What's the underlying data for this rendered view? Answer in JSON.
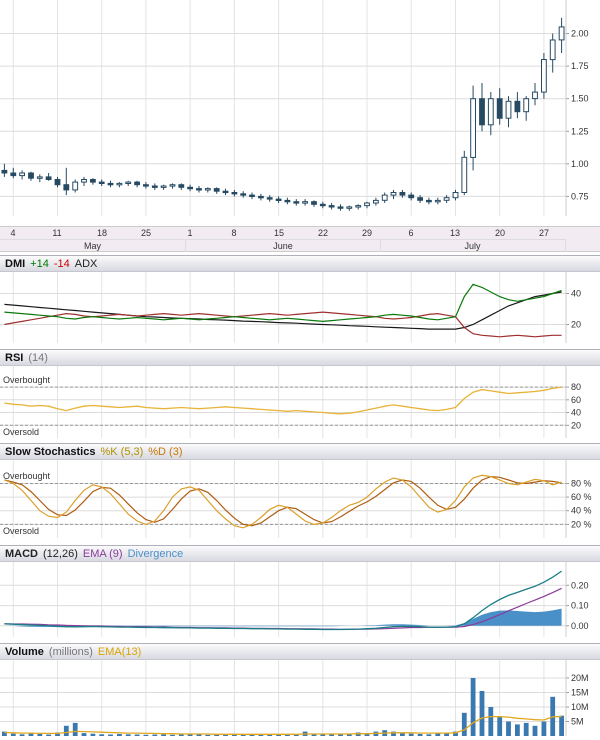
{
  "labels": {
    "overbought": "Overbought",
    "oversold": "Oversold"
  },
  "headers": {
    "dmi": {
      "title": "DMI",
      "plus": "+14",
      "minus": "-14",
      "adx": "ADX"
    },
    "rsi": {
      "title": "RSI",
      "param": "(14)"
    },
    "stoch": {
      "title": "Slow Stochastics",
      "k": "%K (5,3)",
      "d": "%D (3)"
    },
    "macd": {
      "title": "MACD",
      "param": "(12,26)",
      "ema": "EMA (9)",
      "div": "Divergence"
    },
    "volume": {
      "title": "Volume",
      "units": "(millions)",
      "ema": "EMA(13)"
    }
  },
  "colors": {
    "candle": "#274a63",
    "grid": "#dcdcdc",
    "vgrid": "#e4e4e4",
    "plus_di": "#0a7a0a",
    "minus_di": "#a03030",
    "adx": "#1a1a1a",
    "rsi": "#e8b338",
    "stoch_k": "#dba02a",
    "stoch_d": "#b05c10",
    "macd_line": "#1b7e86",
    "macd_signal": "#8b3a9b",
    "macd_div": "#4a90c8",
    "volume_bar": "#3a78b0",
    "volume_ema": "#e0a820"
  },
  "chart_data": {
    "type": "candlestick-multi-panel",
    "x_unit": "trading-day",
    "week_ticks": [
      {
        "i": 1,
        "t": "4"
      },
      {
        "i": 6,
        "t": "11"
      },
      {
        "i": 11,
        "t": "18"
      },
      {
        "i": 16,
        "t": "25"
      },
      {
        "i": 21,
        "t": "1"
      },
      {
        "i": 26,
        "t": "8"
      },
      {
        "i": 31,
        "t": "15"
      },
      {
        "i": 36,
        "t": "22"
      },
      {
        "i": 41,
        "t": "29"
      },
      {
        "i": 46,
        "t": "6"
      },
      {
        "i": 51,
        "t": "13"
      },
      {
        "i": 56,
        "t": "20"
      },
      {
        "i": 61,
        "t": "27"
      }
    ],
    "months": [
      {
        "t": "May",
        "i0": 0,
        "i1": 20
      },
      {
        "t": "June",
        "i0": 21,
        "i1": 42
      },
      {
        "t": "July",
        "i0": 43,
        "i1": 63
      }
    ],
    "price": {
      "range": [
        0.6,
        2.18
      ],
      "yticks": [
        {
          "v": 2.0,
          "t": "2.00"
        },
        {
          "v": 1.75,
          "t": "1.75"
        },
        {
          "v": 1.5,
          "t": "1.50"
        },
        {
          "v": 1.25,
          "t": "1.25"
        },
        {
          "v": 1.0,
          "t": "1.00"
        },
        {
          "v": 0.75,
          "t": "0.75"
        }
      ],
      "ohlc": [
        [
          0.95,
          1.0,
          0.9,
          0.93
        ],
        [
          0.93,
          0.97,
          0.89,
          0.91
        ],
        [
          0.91,
          0.95,
          0.88,
          0.93
        ],
        [
          0.93,
          0.94,
          0.87,
          0.89
        ],
        [
          0.89,
          0.92,
          0.86,
          0.9
        ],
        [
          0.9,
          0.93,
          0.87,
          0.88
        ],
        [
          0.88,
          0.9,
          0.82,
          0.84
        ],
        [
          0.84,
          0.97,
          0.76,
          0.8
        ],
        [
          0.8,
          0.88,
          0.78,
          0.86
        ],
        [
          0.86,
          0.9,
          0.83,
          0.88
        ],
        [
          0.88,
          0.89,
          0.84,
          0.86
        ],
        [
          0.86,
          0.88,
          0.83,
          0.85
        ],
        [
          0.85,
          0.87,
          0.82,
          0.84
        ],
        [
          0.84,
          0.86,
          0.82,
          0.85
        ],
        [
          0.85,
          0.87,
          0.83,
          0.86
        ],
        [
          0.86,
          0.87,
          0.82,
          0.84
        ],
        [
          0.84,
          0.86,
          0.81,
          0.83
        ],
        [
          0.83,
          0.85,
          0.8,
          0.82
        ],
        [
          0.82,
          0.84,
          0.8,
          0.83
        ],
        [
          0.83,
          0.85,
          0.81,
          0.84
        ],
        [
          0.84,
          0.85,
          0.8,
          0.82
        ],
        [
          0.82,
          0.84,
          0.79,
          0.81
        ],
        [
          0.81,
          0.83,
          0.78,
          0.8
        ],
        [
          0.8,
          0.82,
          0.78,
          0.81
        ],
        [
          0.81,
          0.82,
          0.77,
          0.79
        ],
        [
          0.79,
          0.81,
          0.76,
          0.78
        ],
        [
          0.78,
          0.8,
          0.75,
          0.77
        ],
        [
          0.77,
          0.79,
          0.74,
          0.76
        ],
        [
          0.76,
          0.78,
          0.73,
          0.75
        ],
        [
          0.75,
          0.77,
          0.72,
          0.74
        ],
        [
          0.74,
          0.76,
          0.71,
          0.73
        ],
        [
          0.73,
          0.75,
          0.7,
          0.72
        ],
        [
          0.72,
          0.74,
          0.69,
          0.71
        ],
        [
          0.71,
          0.73,
          0.68,
          0.7
        ],
        [
          0.7,
          0.73,
          0.68,
          0.71
        ],
        [
          0.71,
          0.72,
          0.67,
          0.69
        ],
        [
          0.69,
          0.71,
          0.66,
          0.68
        ],
        [
          0.68,
          0.7,
          0.65,
          0.67
        ],
        [
          0.67,
          0.69,
          0.64,
          0.66
        ],
        [
          0.66,
          0.68,
          0.64,
          0.67
        ],
        [
          0.67,
          0.69,
          0.65,
          0.68
        ],
        [
          0.68,
          0.71,
          0.66,
          0.7
        ],
        [
          0.7,
          0.74,
          0.68,
          0.72
        ],
        [
          0.72,
          0.78,
          0.7,
          0.76
        ],
        [
          0.76,
          0.8,
          0.73,
          0.78
        ],
        [
          0.78,
          0.8,
          0.74,
          0.76
        ],
        [
          0.76,
          0.78,
          0.72,
          0.74
        ],
        [
          0.74,
          0.76,
          0.7,
          0.72
        ],
        [
          0.72,
          0.74,
          0.69,
          0.71
        ],
        [
          0.71,
          0.74,
          0.69,
          0.72
        ],
        [
          0.72,
          0.76,
          0.7,
          0.74
        ],
        [
          0.74,
          0.8,
          0.72,
          0.78
        ],
        [
          0.78,
          1.1,
          0.76,
          1.05
        ],
        [
          1.05,
          1.6,
          0.95,
          1.5
        ],
        [
          1.5,
          1.62,
          1.25,
          1.3
        ],
        [
          1.3,
          1.55,
          1.22,
          1.5
        ],
        [
          1.5,
          1.58,
          1.3,
          1.35
        ],
        [
          1.35,
          1.52,
          1.28,
          1.48
        ],
        [
          1.48,
          1.55,
          1.35,
          1.4
        ],
        [
          1.4,
          1.52,
          1.33,
          1.5
        ],
        [
          1.5,
          1.62,
          1.45,
          1.55
        ],
        [
          1.55,
          1.85,
          1.5,
          1.8
        ],
        [
          1.8,
          2.0,
          1.7,
          1.95
        ],
        [
          1.95,
          2.12,
          1.85,
          2.05
        ]
      ]
    },
    "dmi": {
      "range": [
        8,
        52
      ],
      "yticks": [
        {
          "v": 40,
          "t": "40"
        },
        {
          "v": 20,
          "t": "20"
        }
      ],
      "plus_di": [
        28,
        27.5,
        27,
        26.5,
        26,
        25.5,
        25,
        24,
        23.5,
        24.5,
        25,
        24.5,
        24,
        23.5,
        24,
        24.5,
        24,
        23.5,
        23,
        23.5,
        24,
        23.5,
        23,
        23.5,
        24,
        24.5,
        25,
        24.5,
        24,
        23.5,
        23,
        23.5,
        24,
        23.5,
        23,
        22.5,
        22,
        22.5,
        23,
        23.5,
        24,
        24.5,
        25,
        26,
        26.5,
        26,
        25.5,
        24.5,
        23.5,
        23,
        24,
        25,
        38,
        46,
        44,
        41,
        38,
        36,
        35,
        36,
        37,
        38,
        40,
        42
      ],
      "minus_di": [
        20,
        21,
        22,
        23,
        24,
        25,
        26,
        27,
        26.5,
        25.5,
        25,
        25.5,
        26,
        26.5,
        26,
        25.5,
        26,
        26.5,
        27,
        26.5,
        26,
        26.5,
        27,
        26.5,
        26,
        25.5,
        25,
        25.5,
        26,
        26.5,
        27,
        26.5,
        26,
        26.5,
        27,
        27.5,
        28,
        27.5,
        27,
        26.5,
        26,
        25.5,
        25,
        24,
        23.5,
        24,
        24.5,
        25.5,
        26.5,
        27,
        26,
        25,
        18,
        14,
        13,
        12.5,
        12,
        12.5,
        13,
        12.5,
        12,
        12.5,
        13,
        13
      ],
      "adx": [
        33,
        32.5,
        32,
        31.5,
        31,
        30.5,
        30,
        29.5,
        29,
        28.5,
        28,
        27.5,
        27,
        26.5,
        26,
        25.5,
        25,
        24.8,
        24.5,
        24.2,
        24,
        23.8,
        23.5,
        23.2,
        23,
        22.8,
        22.5,
        22.2,
        22,
        21.8,
        21.5,
        21.2,
        21,
        20.8,
        20.5,
        20.2,
        20,
        19.8,
        19.5,
        19.2,
        19,
        18.8,
        18.5,
        18.2,
        18,
        17.8,
        17.5,
        17.3,
        17,
        17,
        17,
        17,
        18,
        20,
        23,
        26,
        29,
        32,
        34,
        36,
        38,
        39,
        40,
        41
      ]
    },
    "rsi": {
      "range": [
        0,
        110
      ],
      "yticks": [
        {
          "v": 80,
          "t": "80"
        },
        {
          "v": 60,
          "t": "60"
        },
        {
          "v": 40,
          "t": "40"
        },
        {
          "v": 20,
          "t": "20"
        }
      ],
      "overbought": 80,
      "oversold": 20,
      "values": [
        55,
        53,
        52,
        50,
        51,
        50,
        46,
        43,
        47,
        50,
        51,
        50,
        49,
        48,
        49,
        50,
        48,
        47,
        46,
        47,
        48,
        47,
        46,
        47,
        48,
        49,
        48,
        47,
        46,
        45,
        44,
        43,
        42,
        43,
        42,
        41,
        40,
        39,
        38,
        39,
        41,
        44,
        47,
        50,
        52,
        50,
        48,
        46,
        44,
        43,
        45,
        48,
        62,
        72,
        76,
        74,
        72,
        70,
        71,
        72,
        73,
        75,
        78,
        80
      ]
    },
    "stoch": {
      "range": [
        0,
        110
      ],
      "yticks": [
        {
          "v": 80,
          "t": "80 %"
        },
        {
          "v": 60,
          "t": "60 %"
        },
        {
          "v": 40,
          "t": "40 %"
        },
        {
          "v": 20,
          "t": "20 %"
        }
      ],
      "overbought": 80,
      "oversold": 20,
      "k": [
        85,
        80,
        70,
        55,
        40,
        32,
        30,
        38,
        55,
        70,
        78,
        75,
        65,
        50,
        35,
        25,
        20,
        25,
        40,
        60,
        72,
        75,
        70,
        55,
        40,
        28,
        18,
        15,
        20,
        30,
        42,
        48,
        45,
        35,
        25,
        20,
        22,
        30,
        40,
        48,
        52,
        60,
        72,
        82,
        88,
        85,
        75,
        60,
        45,
        38,
        42,
        55,
        75,
        88,
        92,
        90,
        85,
        80,
        78,
        82,
        86,
        84,
        78,
        82
      ],
      "d": [
        85,
        82,
        78,
        68,
        55,
        42,
        34,
        33,
        41,
        54,
        68,
        74,
        73,
        63,
        50,
        37,
        27,
        23,
        28,
        42,
        57,
        69,
        72,
        67,
        55,
        41,
        29,
        20,
        18,
        22,
        31,
        40,
        45,
        43,
        35,
        27,
        22,
        24,
        31,
        39,
        47,
        53,
        61,
        71,
        81,
        85,
        83,
        73,
        60,
        48,
        42,
        45,
        57,
        73,
        85,
        90,
        89,
        85,
        81,
        80,
        82,
        84,
        83,
        81
      ]
    },
    "macd": {
      "range": [
        -0.055,
        0.3
      ],
      "yticks": [
        {
          "v": 0.2,
          "t": "0.20"
        },
        {
          "v": 0.1,
          "t": "0.10"
        },
        {
          "v": 0.0,
          "t": "0.00"
        }
      ],
      "macd": [
        0.01,
        0.008,
        0.006,
        0.004,
        0.002,
        0.0,
        -0.002,
        -0.004,
        -0.005,
        -0.004,
        -0.003,
        -0.004,
        -0.005,
        -0.006,
        -0.006,
        -0.007,
        -0.008,
        -0.008,
        -0.009,
        -0.009,
        -0.01,
        -0.01,
        -0.011,
        -0.011,
        -0.012,
        -0.012,
        -0.013,
        -0.013,
        -0.014,
        -0.014,
        -0.015,
        -0.015,
        -0.016,
        -0.016,
        -0.017,
        -0.017,
        -0.018,
        -0.018,
        -0.018,
        -0.017,
        -0.016,
        -0.014,
        -0.012,
        -0.008,
        -0.004,
        -0.002,
        -0.002,
        -0.004,
        -0.006,
        -0.007,
        -0.006,
        -0.004,
        0.01,
        0.04,
        0.075,
        0.105,
        0.13,
        0.15,
        0.165,
        0.18,
        0.195,
        0.215,
        0.24,
        0.27
      ],
      "signal": [
        0.01,
        0.009,
        0.009,
        0.008,
        0.007,
        0.005,
        0.004,
        0.002,
        0.001,
        0.0,
        -0.001,
        -0.001,
        -0.002,
        -0.003,
        -0.004,
        -0.004,
        -0.005,
        -0.006,
        -0.006,
        -0.007,
        -0.008,
        -0.008,
        -0.009,
        -0.009,
        -0.01,
        -0.01,
        -0.011,
        -0.011,
        -0.012,
        -0.012,
        -0.013,
        -0.013,
        -0.014,
        -0.014,
        -0.015,
        -0.015,
        -0.016,
        -0.016,
        -0.017,
        -0.017,
        -0.016,
        -0.016,
        -0.015,
        -0.014,
        -0.012,
        -0.01,
        -0.008,
        -0.008,
        -0.007,
        -0.007,
        -0.007,
        -0.006,
        -0.003,
        0.006,
        0.02,
        0.037,
        0.055,
        0.074,
        0.092,
        0.11,
        0.127,
        0.145,
        0.164,
        0.185
      ]
    },
    "volume": {
      "range": [
        0,
        25.5
      ],
      "yticks": [
        {
          "v": 20,
          "t": "20M"
        },
        {
          "v": 15,
          "t": "15M"
        },
        {
          "v": 10,
          "t": "10M"
        },
        {
          "v": 5,
          "t": "5M"
        }
      ],
      "bars": [
        1.5,
        0.8,
        0.6,
        0.9,
        0.7,
        0.5,
        1.2,
        3.5,
        4.5,
        1.0,
        0.8,
        0.6,
        0.5,
        0.7,
        0.6,
        0.5,
        0.4,
        0.5,
        0.6,
        0.4,
        0.5,
        0.6,
        0.5,
        0.4,
        0.5,
        0.6,
        0.8,
        0.6,
        0.5,
        0.4,
        0.5,
        0.7,
        0.5,
        0.6,
        1.5,
        0.8,
        0.5,
        0.6,
        0.5,
        0.8,
        1.2,
        1.0,
        1.5,
        2.0,
        1.5,
        1.0,
        0.8,
        0.7,
        0.6,
        0.9,
        1.1,
        1.5,
        8.0,
        20.0,
        15.5,
        10.0,
        6.5,
        5.0,
        4.0,
        4.5,
        3.5,
        5.0,
        13.5,
        7.0
      ],
      "ema": [
        1.2,
        1.1,
        1.0,
        1.0,
        0.9,
        0.9,
        0.9,
        1.2,
        1.6,
        1.5,
        1.4,
        1.3,
        1.2,
        1.1,
        1.0,
        1.0,
        0.9,
        0.9,
        0.8,
        0.8,
        0.7,
        0.7,
        0.7,
        0.7,
        0.6,
        0.6,
        0.6,
        0.6,
        0.6,
        0.6,
        0.6,
        0.6,
        0.6,
        0.6,
        0.7,
        0.7,
        0.7,
        0.7,
        0.7,
        0.7,
        0.8,
        0.8,
        0.9,
        1.0,
        1.1,
        1.1,
        1.1,
        1.0,
        1.0,
        1.0,
        1.0,
        1.1,
        2.1,
        4.6,
        6.2,
        6.7,
        6.7,
        6.5,
        6.1,
        5.9,
        5.6,
        5.5,
        6.6,
        6.7
      ]
    }
  }
}
